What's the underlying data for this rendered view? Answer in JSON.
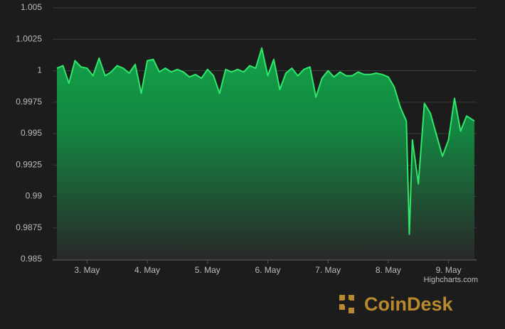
{
  "chart_data": {
    "type": "area",
    "x": [
      2.5,
      2.6,
      2.7,
      2.8,
      2.9,
      3.0,
      3.1,
      3.2,
      3.3,
      3.4,
      3.5,
      3.6,
      3.7,
      3.8,
      3.9,
      4.0,
      4.1,
      4.2,
      4.3,
      4.4,
      4.5,
      4.6,
      4.7,
      4.8,
      4.9,
      5.0,
      5.1,
      5.2,
      5.3,
      5.4,
      5.5,
      5.6,
      5.7,
      5.8,
      5.9,
      6.0,
      6.1,
      6.2,
      6.3,
      6.4,
      6.5,
      6.6,
      6.7,
      6.8,
      6.9,
      7.0,
      7.1,
      7.2,
      7.3,
      7.4,
      7.5,
      7.6,
      7.7,
      7.8,
      7.9,
      8.0,
      8.1,
      8.2,
      8.3,
      8.35,
      8.4,
      8.5,
      8.6,
      8.7,
      8.8,
      8.9,
      9.0,
      9.1,
      9.2,
      9.3,
      9.43
    ],
    "series": [
      {
        "color": "#2ee86a",
        "values": [
          1.0002,
          1.0004,
          0.999,
          1.0008,
          1.0003,
          1.0002,
          0.9996,
          1.001,
          0.9996,
          0.9999,
          1.0004,
          1.0002,
          0.9998,
          1.0005,
          0.9982,
          1.0008,
          1.0009,
          0.9999,
          1.0002,
          0.9999,
          1.0001,
          0.9999,
          0.9995,
          0.9997,
          0.9994,
          1.0001,
          0.9996,
          0.9982,
          1.0001,
          0.9999,
          1.0001,
          0.9999,
          1.0004,
          1.0002,
          1.0018,
          0.9996,
          1.0009,
          0.9985,
          0.9998,
          1.0002,
          0.9996,
          1.0001,
          1.0003,
          0.9979,
          0.9994,
          1.0,
          0.9995,
          0.9999,
          0.9996,
          0.9996,
          0.9999,
          0.9997,
          0.9997,
          0.9998,
          0.9997,
          0.9995,
          0.9987,
          0.9971,
          0.996,
          0.987,
          0.9945,
          0.991,
          0.9974,
          0.9966,
          0.9949,
          0.9932,
          0.9945,
          0.9978,
          0.9952,
          0.9964,
          0.996
        ]
      }
    ],
    "xlim": [
      2.5,
      9.43
    ],
    "xticks": [
      {
        "value": 3,
        "label": "3. May"
      },
      {
        "value": 4,
        "label": "4. May"
      },
      {
        "value": 5,
        "label": "5. May"
      },
      {
        "value": 6,
        "label": "6. May"
      },
      {
        "value": 7,
        "label": "7. May"
      },
      {
        "value": 8,
        "label": "8. May"
      },
      {
        "value": 9,
        "label": "9. May"
      }
    ],
    "ylim": [
      0.985,
      1.005
    ],
    "yticks": [
      0.985,
      0.9875,
      0.99,
      0.9925,
      0.995,
      0.9975,
      1,
      1.0025,
      1.005
    ],
    "grid": true,
    "credits": "Highcharts.com",
    "watermark": "CoinDesk"
  }
}
